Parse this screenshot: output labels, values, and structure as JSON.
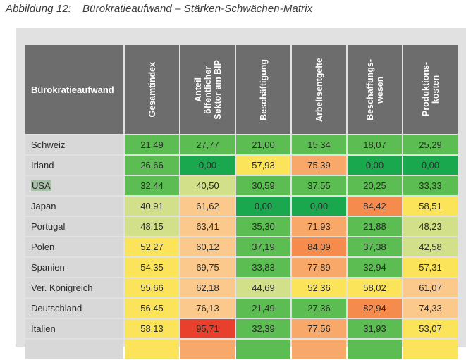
{
  "caption": {
    "number": "Abbildung 12:",
    "title": "Bürokratieaufwand – Stärken-Schwächen-Matrix"
  },
  "table": {
    "row_header": "Bürokratieaufwand",
    "columns": [
      "Gesamtindex",
      "Anteil\nöffentlicher\nSektor am BIP",
      "Beschäftigung",
      "Arbeitsentgelte",
      "Beschaffungs-\nwesen",
      "Produktions-\nkosten"
    ],
    "rows": [
      {
        "country": "Schweiz",
        "values": [
          "21,49",
          "27,77",
          "21,00",
          "15,34",
          "18,07",
          "25,29"
        ],
        "colors": [
          "#5cbd52",
          "#5cbd52",
          "#5cbd52",
          "#5cbd52",
          "#5cbd52",
          "#5cbd52"
        ]
      },
      {
        "country": "Irland",
        "values": [
          "26,66",
          "0,00",
          "57,93",
          "75,39",
          "0,00",
          "0,00"
        ],
        "colors": [
          "#5cbd52",
          "#1aa84e",
          "#fbe45a",
          "#f8a969",
          "#1aa84e",
          "#1aa84e"
        ]
      },
      {
        "country": "USA",
        "values": [
          "32,44",
          "40,50",
          "30,59",
          "37,55",
          "20,25",
          "33,33"
        ],
        "colors": [
          "#5cbd52",
          "#d2e08a",
          "#5cbd52",
          "#5cbd52",
          "#5cbd52",
          "#5cbd52"
        ]
      },
      {
        "country": "Japan",
        "values": [
          "40,91",
          "61,62",
          "0,00",
          "0,00",
          "84,42",
          "58,51"
        ],
        "colors": [
          "#d2e08a",
          "#fbc98b",
          "#1aa84e",
          "#1aa84e",
          "#f58b4c",
          "#fbe45a"
        ]
      },
      {
        "country": "Portugal",
        "values": [
          "48,15",
          "63,41",
          "35,30",
          "71,93",
          "21,88",
          "48,23"
        ],
        "colors": [
          "#d2e08a",
          "#fbc98b",
          "#5cbd52",
          "#f8a969",
          "#5cbd52",
          "#d2e08a"
        ]
      },
      {
        "country": "Polen",
        "values": [
          "52,27",
          "60,12",
          "37,19",
          "84,09",
          "37,38",
          "42,58"
        ],
        "colors": [
          "#fbe45a",
          "#fbc98b",
          "#5cbd52",
          "#f58b4c",
          "#5cbd52",
          "#d2e08a"
        ]
      },
      {
        "country": "Spanien",
        "values": [
          "54,35",
          "69,75",
          "33,83",
          "77,89",
          "32,94",
          "57,31"
        ],
        "colors": [
          "#fbe45a",
          "#fbc98b",
          "#5cbd52",
          "#f8a969",
          "#5cbd52",
          "#fbe45a"
        ]
      },
      {
        "country": "Ver. Königreich",
        "values": [
          "55,66",
          "62,18",
          "44,69",
          "52,36",
          "58,02",
          "61,07"
        ],
        "colors": [
          "#fbe45a",
          "#fbc98b",
          "#d2e08a",
          "#fbe45a",
          "#fbe45a",
          "#fbc98b"
        ]
      },
      {
        "country": "Deutschland",
        "values": [
          "56,45",
          "76,13",
          "21,49",
          "27,36",
          "82,94",
          "74,33"
        ],
        "colors": [
          "#fbe45a",
          "#fbc98b",
          "#5cbd52",
          "#5cbd52",
          "#f58b4c",
          "#fbc98b"
        ]
      },
      {
        "country": "Italien",
        "values": [
          "58,13",
          "95,71",
          "32,39",
          "77,56",
          "31,93",
          "53,07"
        ],
        "colors": [
          "#fbe45a",
          "#e8402c",
          "#5cbd52",
          "#f8a969",
          "#5cbd52",
          "#fbe45a"
        ]
      }
    ],
    "partial_row_colors": [
      "#fbe45a",
      "#f8a969",
      "#5cbd52",
      "#f8a969",
      "#5cbd52",
      "#fbe45a"
    ]
  }
}
